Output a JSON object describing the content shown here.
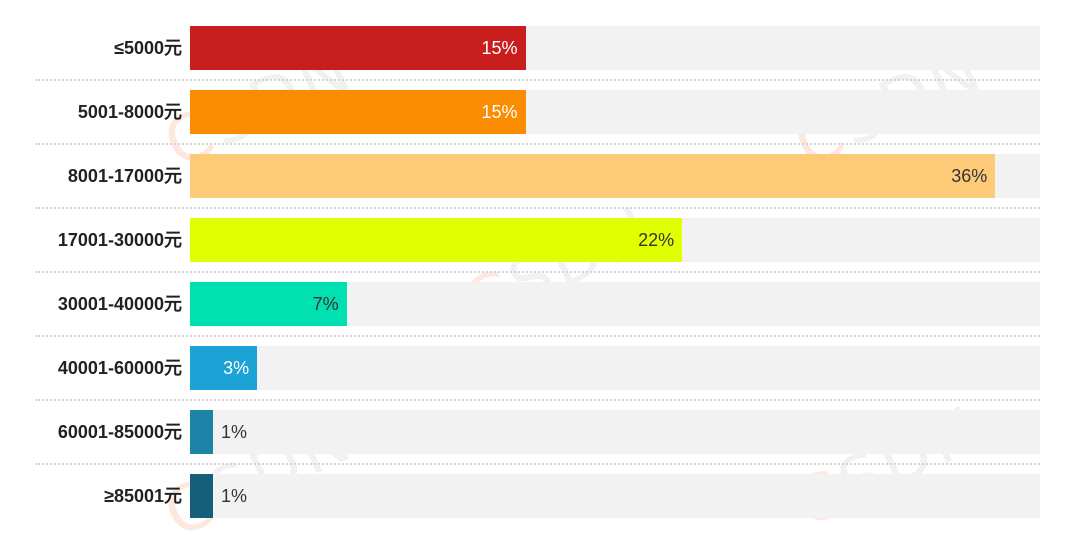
{
  "chart_data": {
    "type": "bar",
    "orientation": "horizontal",
    "title": "",
    "xlabel": "",
    "ylabel": "",
    "xlim": [
      0,
      38
    ],
    "grid": false,
    "categories": [
      "≤5000元",
      "5001-8000元",
      "8001-17000元",
      "17001-30000元",
      "30001-40000元",
      "40001-60000元",
      "60001-85000元",
      "≥85001元"
    ],
    "values": [
      15,
      15,
      36,
      22,
      7,
      3,
      1,
      1
    ],
    "labels": [
      "15%",
      "15%",
      "36%",
      "22%",
      "7%",
      "3%",
      "1%",
      "1%"
    ],
    "colors": [
      "#c81e1e",
      "#f98c00",
      "#fdca78",
      "#e0ff00",
      "#00e0b0",
      "#1aa3d4",
      "#1d84a8",
      "#155f7a"
    ],
    "label_colors": [
      "#ffffff",
      "#ffffff",
      "#333333",
      "#333333",
      "#333333",
      "#ffffff",
      "#333333",
      "#333333"
    ],
    "track_color": "#f2f2f2"
  },
  "watermark": "CSDN"
}
